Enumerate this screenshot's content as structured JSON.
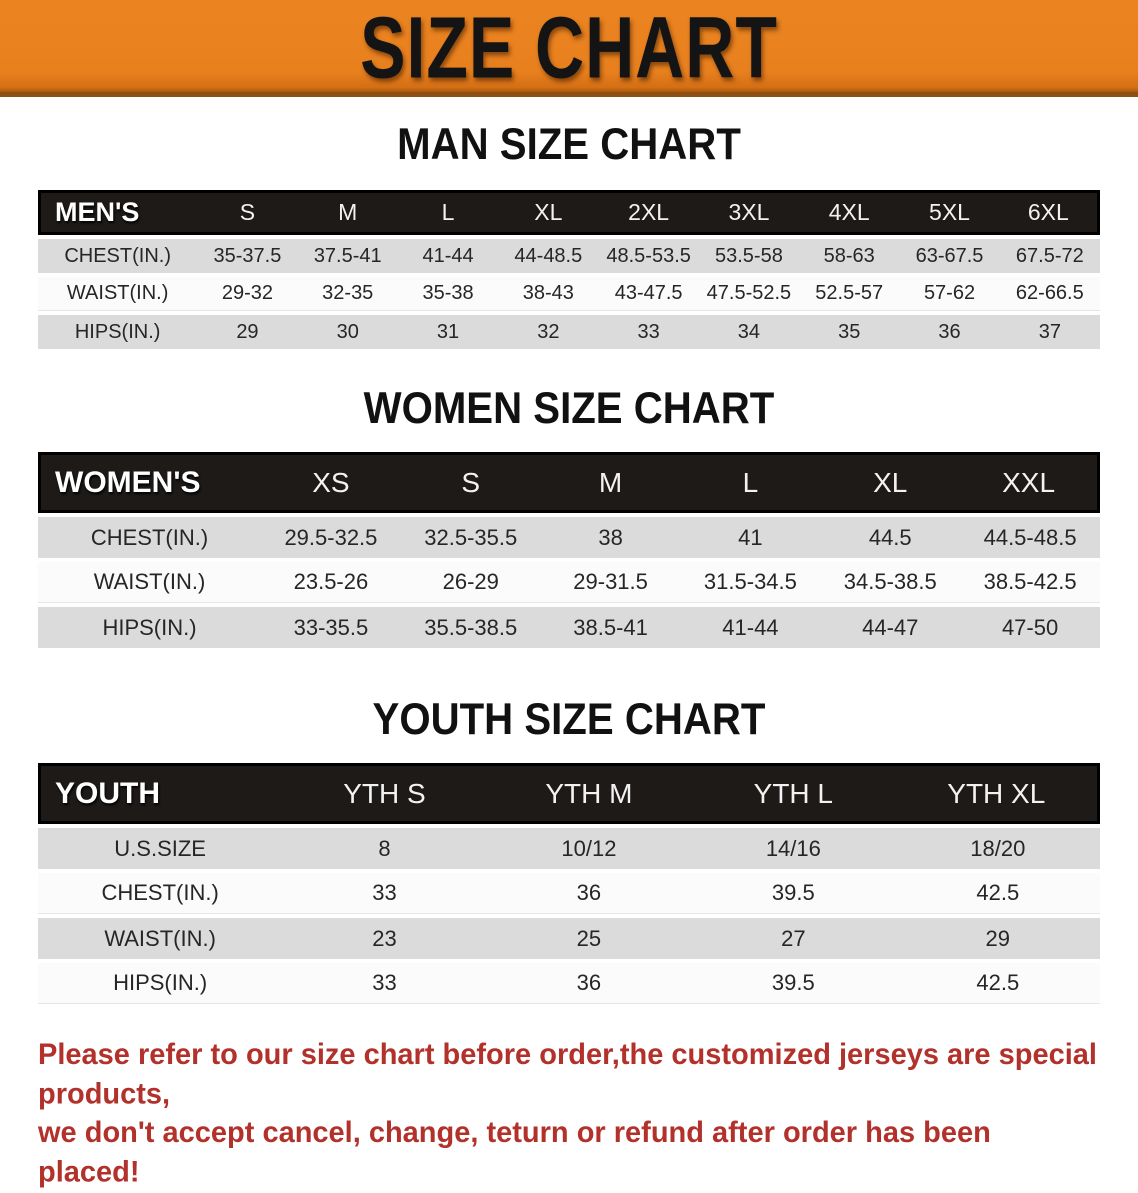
{
  "banner": {
    "title": "SIZE CHART",
    "bg_color": "#E8801E"
  },
  "colors": {
    "header_row_bg": "#1D1A18",
    "alt_row_bg": "#DBDBDB",
    "base_row_bg": "#FBFBFB",
    "disclaimer_red": "#B2312B"
  },
  "sections": [
    {
      "heading": "MAN SIZE CHART",
      "header_label": "MEN'S",
      "columns": [
        "S",
        "M",
        "L",
        "XL",
        "2XL",
        "3XL",
        "4XL",
        "5XL",
        "6XL"
      ],
      "rows": [
        {
          "label": "CHEST(IN.)",
          "values": [
            "35-37.5",
            "37.5-41",
            "41-44",
            "44-48.5",
            "48.5-53.5",
            "53.5-58",
            "58-63",
            "63-67.5",
            "67.5-72"
          ]
        },
        {
          "label": "WAIST(IN.)",
          "values": [
            "29-32",
            "32-35",
            "35-38",
            "38-43",
            "43-47.5",
            "47.5-52.5",
            "52.5-57",
            "57-62",
            "62-66.5"
          ]
        },
        {
          "label": "HIPS(IN.)",
          "values": [
            "29",
            "30",
            "31",
            "32",
            "33",
            "34",
            "35",
            "36",
            "37"
          ]
        }
      ]
    },
    {
      "heading": "WOMEN SIZE CHART",
      "header_label": "WOMEN'S",
      "columns": [
        "XS",
        "S",
        "M",
        "L",
        "XL",
        "XXL"
      ],
      "rows": [
        {
          "label": "CHEST(IN.)",
          "values": [
            "29.5-32.5",
            "32.5-35.5",
            "38",
            "41",
            "44.5",
            "44.5-48.5"
          ]
        },
        {
          "label": "WAIST(IN.)",
          "values": [
            "23.5-26",
            "26-29",
            "29-31.5",
            "31.5-34.5",
            "34.5-38.5",
            "38.5-42.5"
          ]
        },
        {
          "label": "HIPS(IN.)",
          "values": [
            "33-35.5",
            "35.5-38.5",
            "38.5-41",
            "41-44",
            "44-47",
            "47-50"
          ]
        }
      ]
    },
    {
      "heading": "YOUTH SIZE CHART",
      "header_label": "YOUTH",
      "columns": [
        "YTH S",
        "YTH M",
        "YTH L",
        "YTH XL"
      ],
      "rows": [
        {
          "label": "U.S.SIZE",
          "values": [
            "8",
            "10/12",
            "14/16",
            "18/20"
          ]
        },
        {
          "label": "CHEST(IN.)",
          "values": [
            "33",
            "36",
            "39.5",
            "42.5"
          ]
        },
        {
          "label": "WAIST(IN.)",
          "values": [
            "23",
            "25",
            "27",
            "29"
          ]
        },
        {
          "label": "HIPS(IN.)",
          "values": [
            "33",
            "36",
            "39.5",
            "42.5"
          ]
        }
      ]
    }
  ],
  "disclaimer": {
    "line1": "Please refer to our size chart before order,the customized jerseys are special products,",
    "line2": "we don't accept cancel, change, teturn or refund after order has been placed!"
  },
  "chart_data": [
    {
      "type": "table",
      "title": "MAN SIZE CHART",
      "columns": [
        "MEN'S",
        "S",
        "M",
        "L",
        "XL",
        "2XL",
        "3XL",
        "4XL",
        "5XL",
        "6XL"
      ],
      "rows": [
        [
          "CHEST(IN.)",
          "35-37.5",
          "37.5-41",
          "41-44",
          "44-48.5",
          "48.5-53.5",
          "53.5-58",
          "58-63",
          "63-67.5",
          "67.5-72"
        ],
        [
          "WAIST(IN.)",
          "29-32",
          "32-35",
          "35-38",
          "38-43",
          "43-47.5",
          "47.5-52.5",
          "52.5-57",
          "57-62",
          "62-66.5"
        ],
        [
          "HIPS(IN.)",
          "29",
          "30",
          "31",
          "32",
          "33",
          "34",
          "35",
          "36",
          "37"
        ]
      ]
    },
    {
      "type": "table",
      "title": "WOMEN SIZE CHART",
      "columns": [
        "WOMEN'S",
        "XS",
        "S",
        "M",
        "L",
        "XL",
        "XXL"
      ],
      "rows": [
        [
          "CHEST(IN.)",
          "29.5-32.5",
          "32.5-35.5",
          "38",
          "41",
          "44.5",
          "44.5-48.5"
        ],
        [
          "WAIST(IN.)",
          "23.5-26",
          "26-29",
          "29-31.5",
          "31.5-34.5",
          "34.5-38.5",
          "38.5-42.5"
        ],
        [
          "HIPS(IN.)",
          "33-35.5",
          "35.5-38.5",
          "38.5-41",
          "41-44",
          "44-47",
          "47-50"
        ]
      ]
    },
    {
      "type": "table",
      "title": "YOUTH SIZE CHART",
      "columns": [
        "YOUTH",
        "YTH S",
        "YTH M",
        "YTH L",
        "YTH XL"
      ],
      "rows": [
        [
          "U.S.SIZE",
          "8",
          "10/12",
          "14/16",
          "18/20"
        ],
        [
          "CHEST(IN.)",
          "33",
          "36",
          "39.5",
          "42.5"
        ],
        [
          "WAIST(IN.)",
          "23",
          "25",
          "27",
          "29"
        ],
        [
          "HIPS(IN.)",
          "33",
          "36",
          "39.5",
          "42.5"
        ]
      ]
    }
  ]
}
